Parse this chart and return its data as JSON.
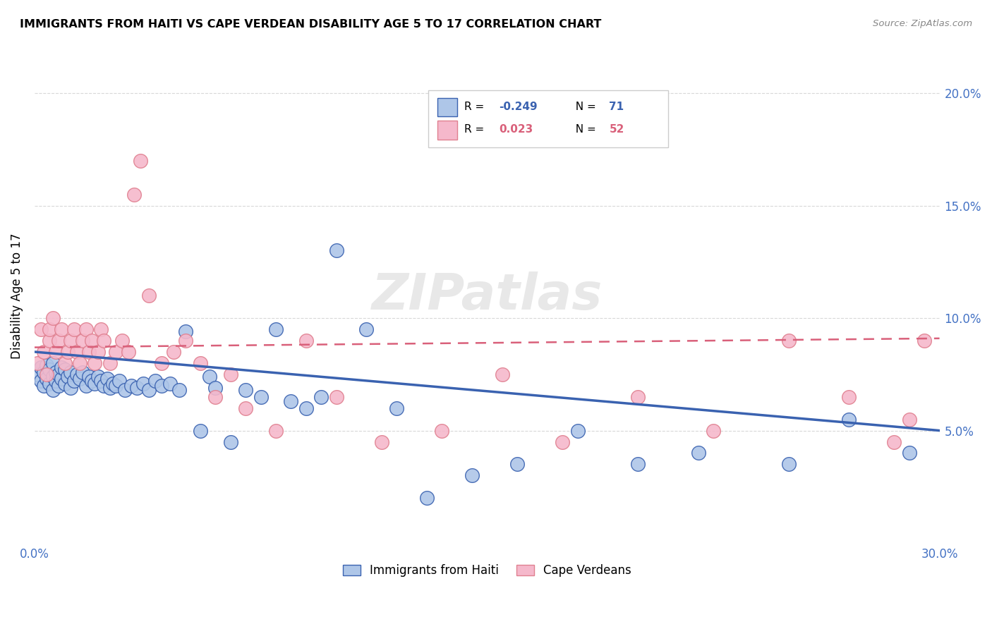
{
  "title": "IMMIGRANTS FROM HAITI VS CAPE VERDEAN DISABILITY AGE 5 TO 17 CORRELATION CHART",
  "source": "Source: ZipAtlas.com",
  "ylabel": "Disability Age 5 to 17",
  "xlim": [
    0.0,
    0.3
  ],
  "ylim": [
    0.0,
    0.22
  ],
  "yticks": [
    0.05,
    0.1,
    0.15,
    0.2
  ],
  "ytick_labels": [
    "5.0%",
    "10.0%",
    "15.0%",
    "20.0%"
  ],
  "xtick_labels": [
    "0.0%",
    "",
    "",
    "",
    "",
    "",
    "30.0%"
  ],
  "color_haiti": "#aec6e8",
  "color_cape": "#f5b8cb",
  "color_line_haiti": "#3a62b0",
  "color_line_cape": "#d9607a",
  "color_axis_label": "#4472c4",
  "color_grid": "#d8d8d8",
  "haiti_x": [
    0.001,
    0.002,
    0.002,
    0.003,
    0.003,
    0.004,
    0.004,
    0.005,
    0.005,
    0.006,
    0.006,
    0.006,
    0.007,
    0.007,
    0.008,
    0.008,
    0.009,
    0.009,
    0.01,
    0.01,
    0.011,
    0.012,
    0.012,
    0.013,
    0.014,
    0.015,
    0.016,
    0.017,
    0.018,
    0.019,
    0.02,
    0.021,
    0.022,
    0.023,
    0.024,
    0.025,
    0.026,
    0.027,
    0.028,
    0.03,
    0.032,
    0.034,
    0.036,
    0.038,
    0.04,
    0.042,
    0.045,
    0.048,
    0.05,
    0.055,
    0.058,
    0.06,
    0.065,
    0.07,
    0.075,
    0.08,
    0.085,
    0.09,
    0.095,
    0.1,
    0.11,
    0.12,
    0.13,
    0.145,
    0.16,
    0.18,
    0.2,
    0.22,
    0.25,
    0.27,
    0.29
  ],
  "haiti_y": [
    0.075,
    0.072,
    0.078,
    0.07,
    0.076,
    0.073,
    0.079,
    0.071,
    0.077,
    0.068,
    0.074,
    0.08,
    0.072,
    0.076,
    0.07,
    0.075,
    0.073,
    0.078,
    0.071,
    0.077,
    0.074,
    0.069,
    0.076,
    0.072,
    0.075,
    0.073,
    0.076,
    0.07,
    0.074,
    0.072,
    0.071,
    0.074,
    0.072,
    0.07,
    0.073,
    0.069,
    0.071,
    0.07,
    0.072,
    0.068,
    0.07,
    0.069,
    0.071,
    0.068,
    0.072,
    0.07,
    0.071,
    0.068,
    0.094,
    0.05,
    0.074,
    0.069,
    0.045,
    0.068,
    0.065,
    0.095,
    0.063,
    0.06,
    0.065,
    0.13,
    0.095,
    0.06,
    0.02,
    0.03,
    0.035,
    0.05,
    0.035,
    0.04,
    0.035,
    0.055,
    0.04
  ],
  "cape_x": [
    0.001,
    0.002,
    0.003,
    0.004,
    0.005,
    0.005,
    0.006,
    0.007,
    0.008,
    0.009,
    0.01,
    0.011,
    0.012,
    0.013,
    0.014,
    0.015,
    0.016,
    0.017,
    0.018,
    0.019,
    0.02,
    0.021,
    0.022,
    0.023,
    0.025,
    0.027,
    0.029,
    0.031,
    0.033,
    0.035,
    0.038,
    0.042,
    0.046,
    0.05,
    0.055,
    0.06,
    0.065,
    0.07,
    0.08,
    0.09,
    0.1,
    0.115,
    0.135,
    0.155,
    0.175,
    0.2,
    0.225,
    0.25,
    0.27,
    0.285,
    0.29,
    0.295
  ],
  "cape_y": [
    0.08,
    0.095,
    0.085,
    0.075,
    0.09,
    0.095,
    0.1,
    0.085,
    0.09,
    0.095,
    0.08,
    0.085,
    0.09,
    0.095,
    0.085,
    0.08,
    0.09,
    0.095,
    0.085,
    0.09,
    0.08,
    0.085,
    0.095,
    0.09,
    0.08,
    0.085,
    0.09,
    0.085,
    0.155,
    0.17,
    0.11,
    0.08,
    0.085,
    0.09,
    0.08,
    0.065,
    0.075,
    0.06,
    0.05,
    0.09,
    0.065,
    0.045,
    0.05,
    0.075,
    0.045,
    0.065,
    0.05,
    0.09,
    0.065,
    0.045,
    0.055,
    0.09
  ]
}
